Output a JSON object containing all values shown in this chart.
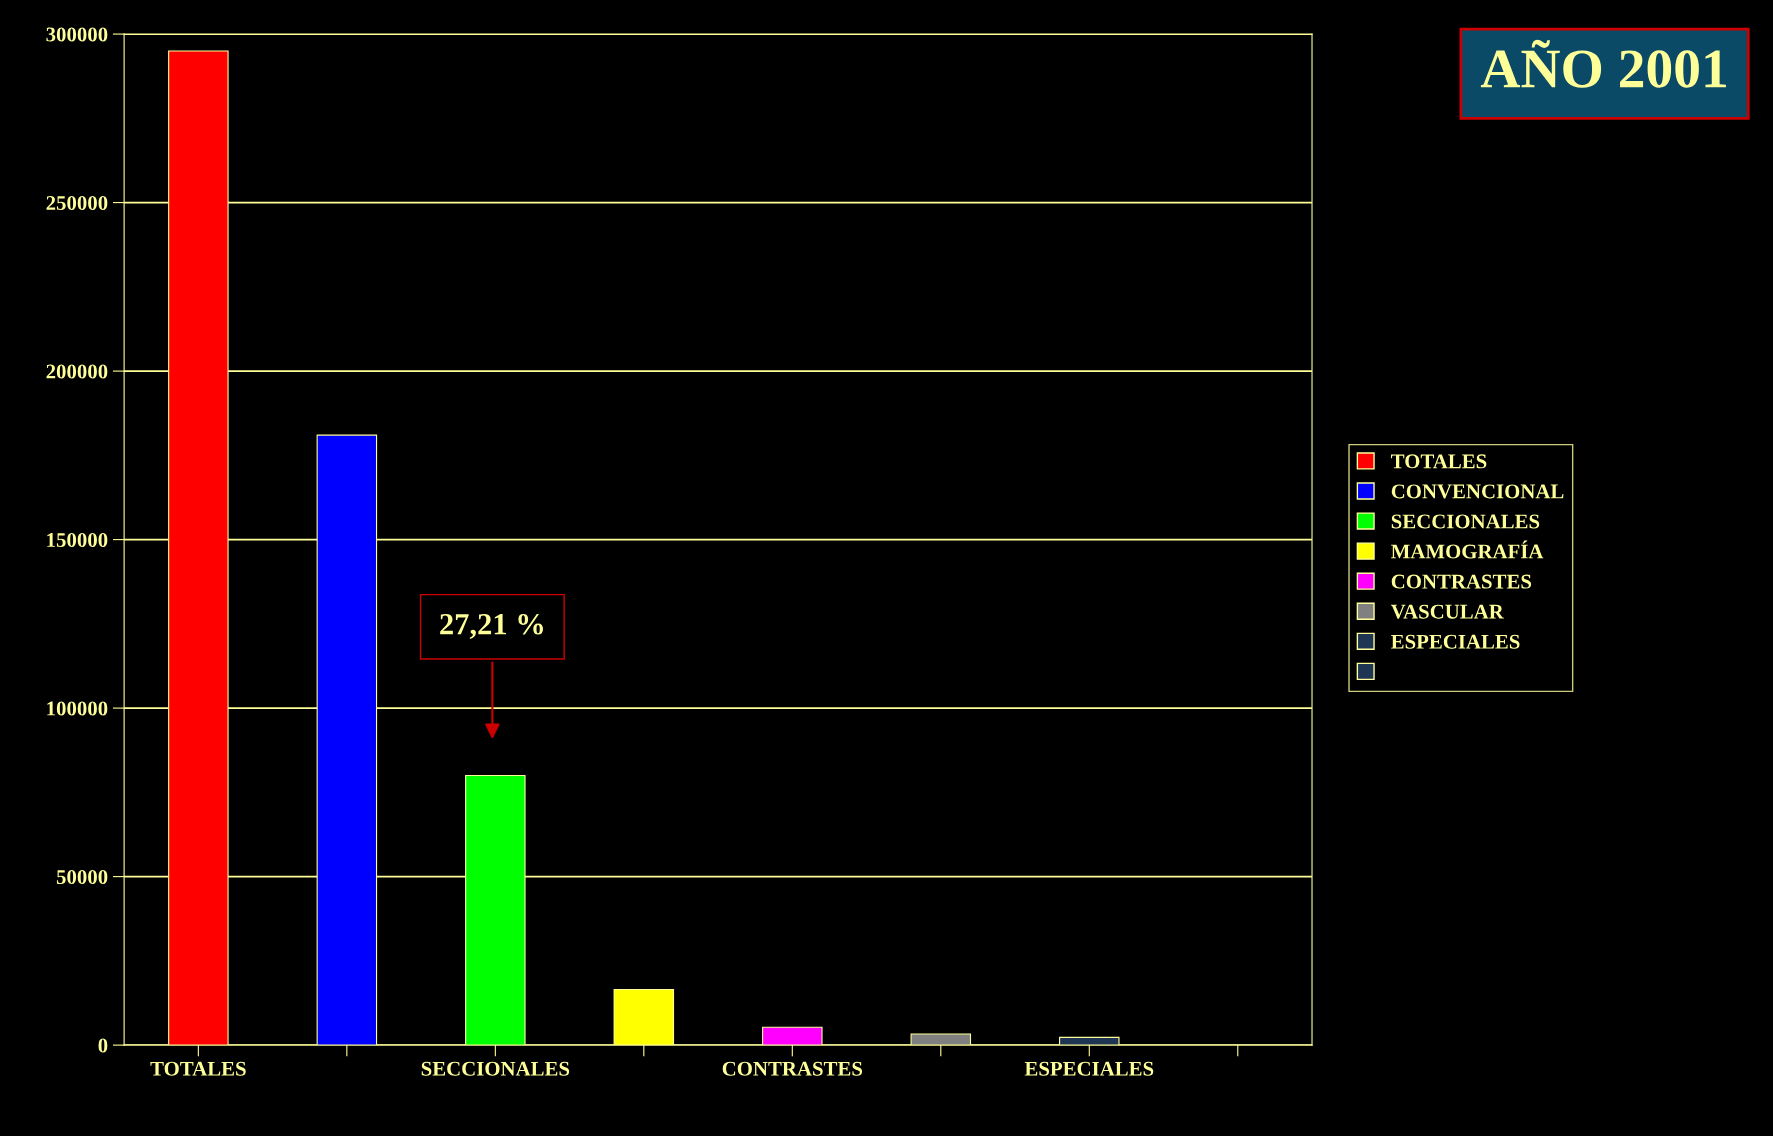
{
  "chart_data": {
    "type": "bar",
    "title": "AÑO 2001",
    "categories": [
      "TOTALES",
      null,
      "SECCIONALES",
      null,
      "CONTRASTES",
      null,
      "ESPECIALES",
      null
    ],
    "series": [
      {
        "name": "TOTALES",
        "color": "#ff0000",
        "values": [
          295000,
          null,
          null,
          null,
          null,
          null,
          null,
          null
        ]
      },
      {
        "name": "CONVENCIONAL",
        "color": "#0000ff",
        "values": [
          null,
          181000,
          null,
          null,
          null,
          null,
          null,
          null
        ]
      },
      {
        "name": "SECCIONALES",
        "color": "#00ff00",
        "values": [
          null,
          null,
          80000,
          null,
          null,
          null,
          null,
          null
        ]
      },
      {
        "name": "MAMOGRAFÍA",
        "color": "#ffff00",
        "values": [
          null,
          null,
          null,
          16500,
          null,
          null,
          null,
          null
        ]
      },
      {
        "name": "CONTRASTES",
        "color": "#ff00ff",
        "values": [
          null,
          null,
          null,
          null,
          5300,
          null,
          null,
          null
        ]
      },
      {
        "name": "VASCULAR",
        "color": "#808080",
        "values": [
          null,
          null,
          null,
          null,
          null,
          3300,
          null,
          null
        ]
      },
      {
        "name": "ESPECIALES",
        "color": "#1f3554",
        "values": [
          null,
          null,
          null,
          null,
          null,
          null,
          2300,
          null
        ]
      },
      {
        "color": "#1f3554",
        "values": [
          null,
          null,
          null,
          null,
          null,
          null,
          null,
          null
        ]
      }
    ],
    "ylim": [
      0,
      300000
    ],
    "yticks": [
      0,
      50000,
      100000,
      150000,
      200000,
      250000,
      300000
    ],
    "grid": "y",
    "legend": "right",
    "annotations": [
      "27,21 %"
    ]
  }
}
